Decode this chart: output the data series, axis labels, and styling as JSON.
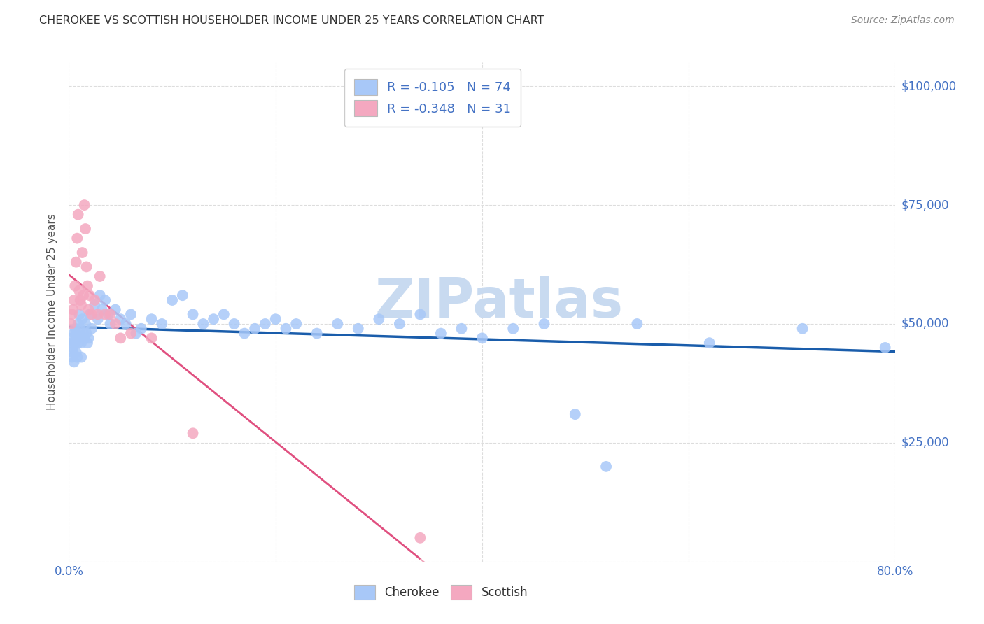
{
  "title": "CHEROKEE VS SCOTTISH HOUSEHOLDER INCOME UNDER 25 YEARS CORRELATION CHART",
  "source": "Source: ZipAtlas.com",
  "ylabel_label": "Householder Income Under 25 years",
  "ylim": [
    0,
    105000
  ],
  "xlim": [
    0.0,
    0.8
  ],
  "legend_labels": [
    "Cherokee",
    "Scottish"
  ],
  "legend_r_cherokee": "-0.105",
  "legend_n_cherokee": "74",
  "legend_r_scottish": "-0.348",
  "legend_n_scottish": "31",
  "cherokee_color": "#a8c8f8",
  "scottish_color": "#f4a8c0",
  "cherokee_line_color": "#1a5dab",
  "scottish_line_solid_color": "#e05080",
  "scottish_line_dash_color": "#f0a0b8",
  "watermark_text": "ZIPatlas",
  "watermark_color": "#c8daf0",
  "cherokee_x": [
    0.002,
    0.003,
    0.003,
    0.004,
    0.004,
    0.005,
    0.005,
    0.006,
    0.006,
    0.007,
    0.007,
    0.008,
    0.008,
    0.009,
    0.009,
    0.01,
    0.01,
    0.011,
    0.012,
    0.012,
    0.013,
    0.014,
    0.015,
    0.016,
    0.017,
    0.018,
    0.019,
    0.02,
    0.022,
    0.025,
    0.028,
    0.03,
    0.032,
    0.035,
    0.038,
    0.04,
    0.045,
    0.05,
    0.055,
    0.06,
    0.065,
    0.07,
    0.08,
    0.09,
    0.1,
    0.11,
    0.12,
    0.13,
    0.14,
    0.15,
    0.16,
    0.17,
    0.18,
    0.19,
    0.2,
    0.21,
    0.22,
    0.24,
    0.26,
    0.28,
    0.3,
    0.32,
    0.34,
    0.36,
    0.38,
    0.4,
    0.43,
    0.46,
    0.49,
    0.52,
    0.55,
    0.62,
    0.71,
    0.79
  ],
  "cherokee_y": [
    47000,
    46000,
    43000,
    45000,
    44000,
    48000,
    42000,
    49000,
    46000,
    48000,
    44000,
    47000,
    43000,
    46000,
    50000,
    52000,
    47000,
    49000,
    46000,
    43000,
    51000,
    48000,
    47000,
    50000,
    48000,
    46000,
    47000,
    52000,
    49000,
    54000,
    51000,
    56000,
    53000,
    55000,
    52000,
    50000,
    53000,
    51000,
    50000,
    52000,
    48000,
    49000,
    51000,
    50000,
    55000,
    56000,
    52000,
    50000,
    51000,
    52000,
    50000,
    48000,
    49000,
    50000,
    51000,
    49000,
    50000,
    48000,
    50000,
    49000,
    51000,
    50000,
    52000,
    48000,
    49000,
    47000,
    49000,
    50000,
    31000,
    20000,
    50000,
    46000,
    49000,
    45000
  ],
  "scottish_x": [
    0.002,
    0.003,
    0.004,
    0.005,
    0.006,
    0.007,
    0.008,
    0.009,
    0.01,
    0.011,
    0.012,
    0.013,
    0.014,
    0.015,
    0.016,
    0.017,
    0.018,
    0.019,
    0.02,
    0.022,
    0.025,
    0.028,
    0.03,
    0.035,
    0.04,
    0.045,
    0.05,
    0.06,
    0.08,
    0.12,
    0.34
  ],
  "scottish_y": [
    50000,
    52000,
    53000,
    55000,
    58000,
    63000,
    68000,
    73000,
    57000,
    55000,
    54000,
    65000,
    56000,
    75000,
    70000,
    62000,
    58000,
    53000,
    56000,
    52000,
    55000,
    52000,
    60000,
    52000,
    52000,
    50000,
    47000,
    48000,
    47000,
    27000,
    5000
  ],
  "x_tick_positions": [
    0.0,
    0.2,
    0.4,
    0.6,
    0.8
  ],
  "x_tick_labels": [
    "0.0%",
    "",
    "",
    "",
    "80.0%"
  ],
  "y_tick_positions": [
    0,
    25000,
    50000,
    75000,
    100000
  ],
  "y_tick_labels": [
    "",
    "$25,000",
    "$50,000",
    "$75,000",
    "$100,000"
  ]
}
